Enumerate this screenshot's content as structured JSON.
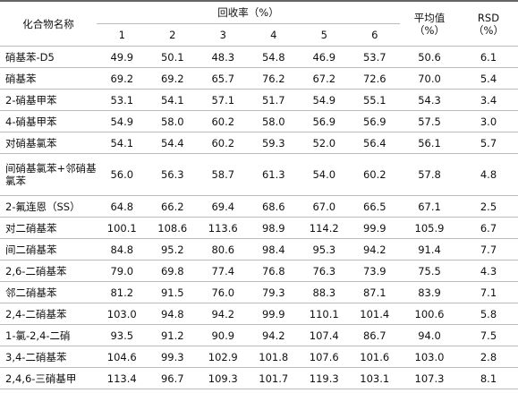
{
  "table": {
    "header": {
      "name": "化合物名称",
      "recovery": "回收率（%）",
      "runs": [
        "1",
        "2",
        "3",
        "4",
        "5",
        "6"
      ],
      "avg": [
        "平均值",
        "（%）"
      ],
      "rsd": [
        "RSD",
        "（%）"
      ]
    },
    "rows": [
      {
        "name": "硝基苯-D5",
        "values": [
          "49.9",
          "50.1",
          "48.3",
          "54.8",
          "46.9",
          "53.7",
          "50.6",
          "6.1"
        ]
      },
      {
        "name": "硝基苯",
        "values": [
          "69.2",
          "69.2",
          "65.7",
          "76.2",
          "67.2",
          "72.6",
          "70.0",
          "5.4"
        ]
      },
      {
        "name": "2-硝基甲苯",
        "values": [
          "53.1",
          "54.1",
          "57.1",
          "51.7",
          "54.9",
          "55.1",
          "54.3",
          "3.4"
        ]
      },
      {
        "name": "4-硝基甲苯",
        "values": [
          "54.9",
          "58.0",
          "60.2",
          "58.0",
          "56.9",
          "56.9",
          "57.5",
          "3.0"
        ]
      },
      {
        "name": "对硝基氯苯",
        "values": [
          "54.1",
          "54.4",
          "60.2",
          "59.3",
          "52.0",
          "56.4",
          "56.1",
          "5.7"
        ]
      },
      {
        "name": "间硝基氯苯+邻硝基氯苯",
        "values": [
          "56.0",
          "56.3",
          "58.7",
          "61.3",
          "54.0",
          "60.2",
          "57.8",
          "4.8"
        ]
      },
      {
        "name": "2-氟连恩（SS）",
        "values": [
          "64.8",
          "66.2",
          "69.4",
          "68.6",
          "67.0",
          "66.5",
          "67.1",
          "2.5"
        ]
      },
      {
        "name": "对二硝基苯",
        "values": [
          "100.1",
          "108.6",
          "113.6",
          "98.9",
          "114.2",
          "99.9",
          "105.9",
          "6.7"
        ]
      },
      {
        "name": "间二硝基苯",
        "values": [
          "84.8",
          "95.2",
          "80.6",
          "98.4",
          "95.3",
          "94.2",
          "91.4",
          "7.7"
        ]
      },
      {
        "name": "2,6-二硝基苯",
        "values": [
          "79.0",
          "69.8",
          "77.4",
          "76.8",
          "76.3",
          "73.9",
          "75.5",
          "4.3"
        ]
      },
      {
        "name": "邻二硝基苯",
        "values": [
          "81.2",
          "91.5",
          "76.0",
          "79.3",
          "88.3",
          "87.1",
          "83.9",
          "7.1"
        ]
      },
      {
        "name": "2,4-二硝基苯",
        "values": [
          "103.0",
          "94.8",
          "94.2",
          "99.9",
          "110.1",
          "101.4",
          "100.6",
          "5.8"
        ]
      },
      {
        "name": "1-氯-2,4-二硝",
        "values": [
          "93.5",
          "91.2",
          "90.9",
          "94.2",
          "107.4",
          "86.7",
          "94.0",
          "7.5"
        ]
      },
      {
        "name": "3,4-二硝基苯",
        "values": [
          "104.6",
          "99.3",
          "102.9",
          "101.8",
          "107.6",
          "101.6",
          "103.0",
          "2.8"
        ]
      },
      {
        "name": "2,4,6-三硝基甲",
        "values": [
          "113.4",
          "96.7",
          "109.3",
          "101.7",
          "119.3",
          "103.1",
          "107.3",
          "8.1"
        ]
      }
    ]
  }
}
